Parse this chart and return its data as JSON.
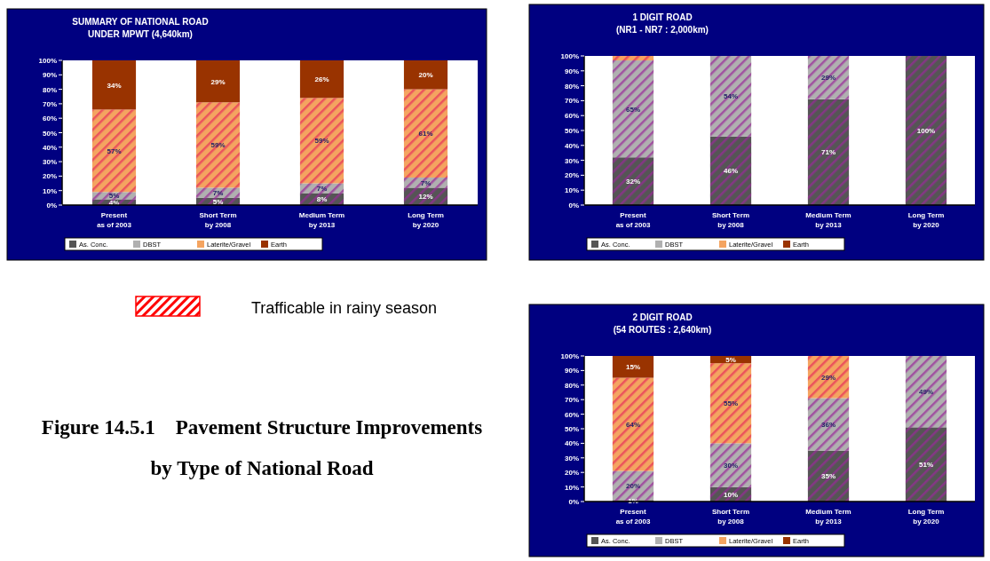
{
  "chart_data": [
    {
      "type": "bar",
      "stacked": true,
      "title": "SUMMARY OF NATIONAL ROAD",
      "subtitle": "UNDER MPWT (4,640km)",
      "categories": [
        "Present\nas of 2003",
        "Short Term\nby 2008",
        "Medium Term\nby 2013",
        "Long Term\nby 2020"
      ],
      "ylim": [
        0,
        100
      ],
      "yticks": [
        {
          "value": 0,
          "label": "0%"
        },
        {
          "value": 10,
          "label": "10%"
        },
        {
          "value": 20,
          "label": "20%"
        },
        {
          "value": 30,
          "label": "30%"
        },
        {
          "value": 40,
          "label": "40%"
        },
        {
          "value": 50,
          "label": "50%"
        },
        {
          "value": 60,
          "label": "60%"
        },
        {
          "value": 70,
          "label": "70%"
        },
        {
          "value": 80,
          "label": "80%"
        },
        {
          "value": 90,
          "label": "90%"
        },
        {
          "value": 100,
          "label": "100%"
        }
      ],
      "legend": "bottom",
      "series": [
        {
          "name": "As. Conc.",
          "color": "#555555",
          "values": [
            4,
            5,
            8,
            12
          ],
          "value_labels": [
            "4%",
            "5%",
            "8%",
            "12%"
          ]
        },
        {
          "name": "DBST",
          "color": "#b0b0b0",
          "values": [
            5,
            7,
            7,
            7
          ],
          "value_labels": [
            "5%",
            "7%",
            "7%",
            "7%"
          ]
        },
        {
          "name": "Laterite/Gravel",
          "color": "#f4a460",
          "values": [
            57,
            59,
            59,
            61
          ],
          "value_labels": [
            "57%",
            "59%",
            "59%",
            "61%"
          ]
        },
        {
          "name": "Earth",
          "color": "#993300",
          "values": [
            34,
            29,
            26,
            20
          ],
          "value_labels": [
            "34%",
            "29%",
            "26%",
            "20%"
          ]
        }
      ],
      "annotations": [
        "Trafficable in rainy season",
        "Figure 14.5.1    Pavement Structure Improvements",
        "by Type of National Road"
      ]
    },
    {
      "type": "bar",
      "stacked": true,
      "title": "1 DIGIT ROAD",
      "subtitle": "(NR1 - NR7 : 2,000km)",
      "categories": [
        "Present\nas of 2003",
        "Short Term\nby 2008",
        "Medium Term\nby 2013",
        "Long Term\nby 2020"
      ],
      "ylim": [
        0,
        100
      ],
      "yticks": [
        {
          "value": 0,
          "label": "0%"
        },
        {
          "value": 10,
          "label": "10%"
        },
        {
          "value": 20,
          "label": "20%"
        },
        {
          "value": 30,
          "label": "30%"
        },
        {
          "value": 40,
          "label": "40%"
        },
        {
          "value": 50,
          "label": "50%"
        },
        {
          "value": 60,
          "label": "60%"
        },
        {
          "value": 70,
          "label": "70%"
        },
        {
          "value": 80,
          "label": "80%"
        },
        {
          "value": 90,
          "label": "90%"
        },
        {
          "value": 100,
          "label": "100%"
        }
      ],
      "legend": "bottom",
      "series": [
        {
          "name": "As. Conc.",
          "color": "#555555",
          "values": [
            32,
            46,
            71,
            100
          ],
          "value_labels": [
            "32%",
            "46%",
            "71%",
            "100%"
          ]
        },
        {
          "name": "DBST",
          "color": "#b0b0b0",
          "values": [
            65,
            54,
            29,
            0
          ],
          "value_labels": [
            "65%",
            "54%",
            "29%",
            null
          ]
        },
        {
          "name": "Laterite/Gravel",
          "color": "#f4a460",
          "values": [
            3,
            0,
            0,
            0
          ],
          "value_labels": [
            null,
            null,
            null,
            null
          ]
        },
        {
          "name": "Earth",
          "color": "#993300",
          "values": [
            0,
            0,
            0,
            0
          ],
          "value_labels": [
            null,
            null,
            null,
            null
          ]
        }
      ]
    },
    {
      "type": "bar",
      "stacked": true,
      "title": "2 DIGIT ROAD",
      "subtitle": "(54 ROUTES : 2,640km)",
      "categories": [
        "Present\nas of 2003",
        "Short Term\nby 2008",
        "Medium Term\nby 2013",
        "Long Term\nby 2020"
      ],
      "ylim": [
        0,
        100
      ],
      "yticks": [
        {
          "value": 0,
          "label": "0%"
        },
        {
          "value": 10,
          "label": "10%"
        },
        {
          "value": 20,
          "label": "20%"
        },
        {
          "value": 30,
          "label": "30%"
        },
        {
          "value": 40,
          "label": "40%"
        },
        {
          "value": 50,
          "label": "50%"
        },
        {
          "value": 60,
          "label": "60%"
        },
        {
          "value": 70,
          "label": "70%"
        },
        {
          "value": 80,
          "label": "80%"
        },
        {
          "value": 90,
          "label": "90%"
        },
        {
          "value": 100,
          "label": "100%"
        }
      ],
      "legend": "bottom",
      "series": [
        {
          "name": "As. Conc.",
          "color": "#555555",
          "values": [
            1,
            10,
            35,
            51
          ],
          "value_labels": [
            "1%",
            "10%",
            "35%",
            "51%"
          ]
        },
        {
          "name": "DBST",
          "color": "#b0b0b0",
          "values": [
            20,
            30,
            36,
            49
          ],
          "value_labels": [
            "20%",
            "30%",
            "36%",
            "49%"
          ]
        },
        {
          "name": "Laterite/Gravel",
          "color": "#f4a460",
          "values": [
            64,
            55,
            29,
            0
          ],
          "value_labels": [
            "64%",
            "55%",
            "29%",
            null
          ]
        },
        {
          "name": "Earth",
          "color": "#993300",
          "values": [
            15,
            5,
            0,
            0
          ],
          "value_labels": [
            "15%",
            "5%",
            null,
            null
          ]
        }
      ]
    }
  ]
}
